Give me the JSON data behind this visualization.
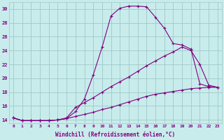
{
  "xlabel": "Windchill (Refroidissement éolien,°C)",
  "bg_color": "#c8ecec",
  "line_color": "#800080",
  "grid_color": "#a0c8c8",
  "xlim": [
    -0.5,
    23.5
  ],
  "ylim": [
    13.5,
    31.0
  ],
  "xticks": [
    0,
    1,
    2,
    3,
    4,
    5,
    6,
    7,
    8,
    9,
    10,
    11,
    12,
    13,
    14,
    15,
    16,
    17,
    18,
    19,
    20,
    21,
    22,
    23
  ],
  "yticks": [
    14,
    16,
    18,
    20,
    22,
    24,
    26,
    28,
    30
  ],
  "line1_x": [
    0,
    1,
    2,
    3,
    4,
    5,
    6,
    7,
    8,
    9,
    10,
    11,
    12,
    13,
    14,
    15,
    16,
    17,
    18,
    19,
    20,
    21,
    22,
    23
  ],
  "line1_y": [
    14.3,
    13.9,
    13.9,
    13.9,
    13.9,
    14.0,
    14.2,
    15.2,
    17.0,
    20.5,
    24.5,
    29.0,
    30.1,
    30.4,
    30.4,
    30.3,
    28.8,
    27.2,
    25.0,
    24.8,
    24.2,
    19.2,
    18.8,
    18.7
  ],
  "line2_x": [
    0,
    1,
    2,
    3,
    4,
    5,
    6,
    7,
    8,
    9,
    10,
    11,
    12,
    13,
    14,
    15,
    16,
    17,
    18,
    19,
    20,
    21,
    22,
    23
  ],
  "line2_y": [
    14.3,
    13.9,
    13.9,
    13.9,
    13.9,
    14.0,
    14.3,
    15.8,
    16.5,
    17.2,
    18.0,
    18.8,
    19.5,
    20.2,
    21.0,
    21.8,
    22.5,
    23.2,
    23.8,
    24.5,
    24.0,
    22.0,
    19.0,
    18.7
  ],
  "line3_x": [
    0,
    1,
    2,
    3,
    4,
    5,
    6,
    7,
    8,
    9,
    10,
    11,
    12,
    13,
    14,
    15,
    16,
    17,
    18,
    19,
    20,
    21,
    22,
    23
  ],
  "line3_y": [
    14.3,
    13.9,
    13.9,
    13.9,
    13.9,
    14.0,
    14.2,
    14.5,
    14.8,
    15.1,
    15.5,
    15.8,
    16.2,
    16.6,
    17.0,
    17.4,
    17.7,
    17.9,
    18.1,
    18.3,
    18.5,
    18.6,
    18.7,
    18.7
  ]
}
